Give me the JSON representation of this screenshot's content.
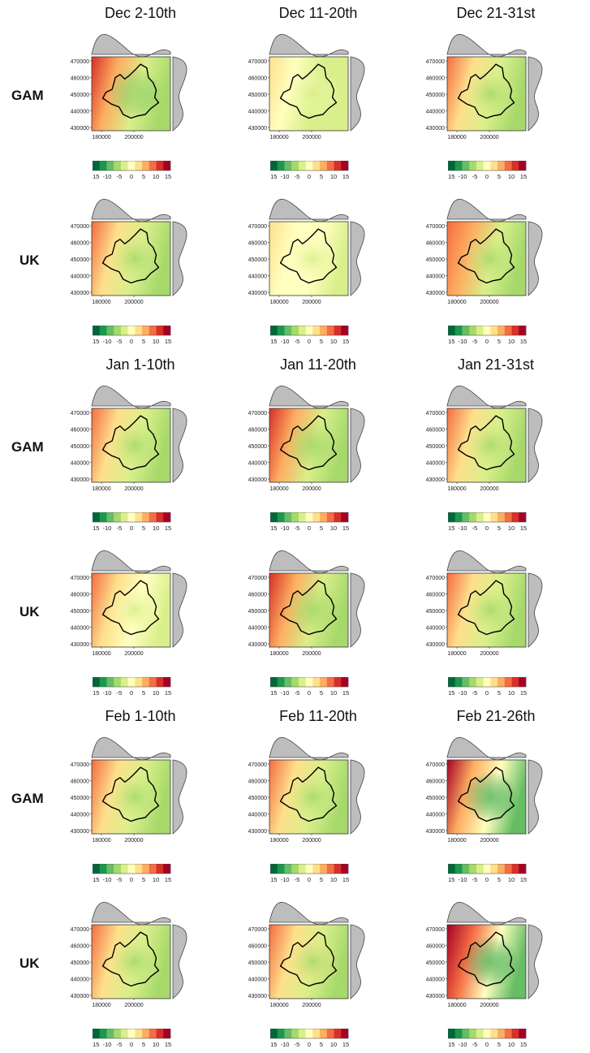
{
  "figure": {
    "columns": [
      {
        "periods": [
          "Dec 2-10th",
          "Jan 1-10th",
          "Feb 1-10th"
        ]
      },
      {
        "periods": [
          "Dec 11-20th",
          "Jan 11-20th",
          "Feb 11-20th"
        ]
      },
      {
        "periods": [
          "Dec 21-31st",
          "Jan 21-31st",
          "Feb 21-26th"
        ]
      }
    ],
    "row_labels": [
      "GAM",
      "UK"
    ],
    "axis": {
      "x_ticks": [
        "180000",
        "200000"
      ],
      "y_ticks": [
        "470000",
        "460000",
        "450000",
        "440000",
        "430000"
      ]
    },
    "colorbar": {
      "tick_labels": [
        "-15",
        "-10",
        "-5",
        "0",
        "5",
        "10",
        "15"
      ],
      "colors": [
        "#006837",
        "#1a9850",
        "#66bd63",
        "#a6d96a",
        "#d9ef8b",
        "#ffffbf",
        "#fee08b",
        "#fdae61",
        "#f46d43",
        "#d73027",
        "#a50026"
      ]
    }
  },
  "chart_data": [
    {
      "type": "heatmap",
      "title": "Dec 2-10th",
      "row": "GAM",
      "cell": [
        0,
        0
      ],
      "fill": "mixed: red west edge, green interior/east"
    },
    {
      "type": "heatmap",
      "title": "Dec 11-20th",
      "row": "GAM",
      "cell": [
        1,
        0
      ],
      "fill": "mostly pale yellow-green"
    },
    {
      "type": "heatmap",
      "title": "Dec 21-31st",
      "row": "GAM",
      "cell": [
        2,
        0
      ],
      "fill": "orange edges, green interior"
    },
    {
      "type": "heatmap",
      "title": "Dec 2-10th",
      "row": "UK",
      "cell": [
        0,
        1
      ],
      "fill": "orange west, green centre"
    },
    {
      "type": "heatmap",
      "title": "Dec 11-20th",
      "row": "UK",
      "cell": [
        1,
        1
      ],
      "fill": "pale yellow"
    },
    {
      "type": "heatmap",
      "title": "Dec 21-31st",
      "row": "UK",
      "cell": [
        2,
        1
      ],
      "fill": "orange west, green centre/south"
    },
    {
      "type": "heatmap",
      "title": "Jan 1-10th",
      "row": "GAM",
      "cell": [
        0,
        2
      ],
      "fill": "orange west, green centre"
    },
    {
      "type": "heatmap",
      "title": "Jan 11-20th",
      "row": "GAM",
      "cell": [
        1,
        2
      ],
      "fill": "red west, green centre/east"
    },
    {
      "type": "heatmap",
      "title": "Jan 21-31st",
      "row": "GAM",
      "cell": [
        2,
        2
      ],
      "fill": "orange edges, green centre"
    },
    {
      "type": "heatmap",
      "title": "Jan 1-10th",
      "row": "UK",
      "cell": [
        0,
        3
      ],
      "fill": "orange west, yellow-green"
    },
    {
      "type": "heatmap",
      "title": "Jan 11-20th",
      "row": "UK",
      "cell": [
        1,
        3
      ],
      "fill": "red west, green centre"
    },
    {
      "type": "heatmap",
      "title": "Jan 21-31st",
      "row": "UK",
      "cell": [
        2,
        3
      ],
      "fill": "orange edges, green centre"
    },
    {
      "type": "heatmap",
      "title": "Feb 1-10th",
      "row": "GAM",
      "cell": [
        0,
        4
      ],
      "fill": "orange west, green centre"
    },
    {
      "type": "heatmap",
      "title": "Feb 11-20th",
      "row": "GAM",
      "cell": [
        1,
        4
      ],
      "fill": "orange west/north, green centre"
    },
    {
      "type": "heatmap",
      "title": "Feb 21-26th",
      "row": "GAM",
      "cell": [
        2,
        4
      ],
      "fill": "dark red west, dark green south-east"
    },
    {
      "type": "heatmap",
      "title": "Feb 1-10th",
      "row": "UK",
      "cell": [
        0,
        5
      ],
      "fill": "orange west, green centre"
    },
    {
      "type": "heatmap",
      "title": "Feb 11-20th",
      "row": "UK",
      "cell": [
        1,
        5
      ],
      "fill": "red south-west, green centre"
    },
    {
      "type": "heatmap",
      "title": "Feb 21-26th",
      "row": "UK",
      "cell": [
        2,
        5
      ],
      "fill": "dark red west, dark green east"
    }
  ]
}
